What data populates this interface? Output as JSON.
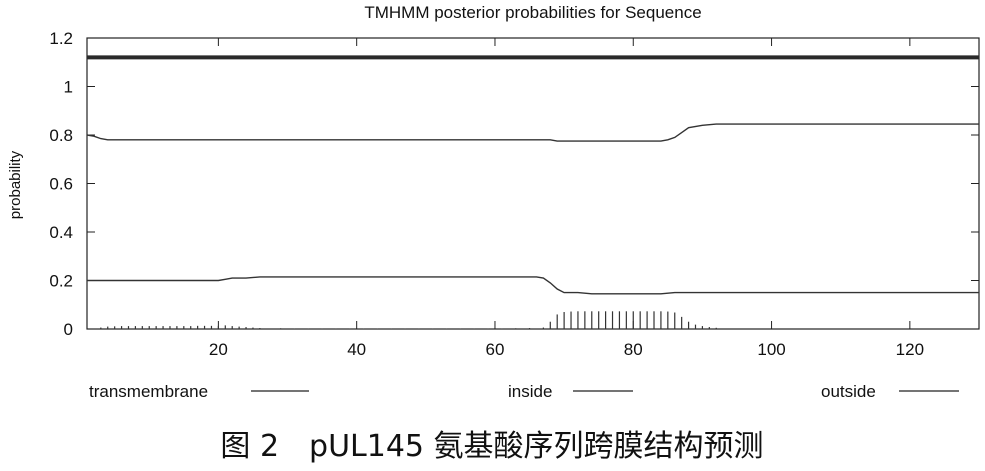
{
  "chart_data": {
    "type": "line",
    "title": "TMHMM posterior probabilities for Sequence",
    "xlabel": "",
    "ylabel": "probability",
    "xlim": [
      1,
      130
    ],
    "ylim": [
      0,
      1.2
    ],
    "x_ticks": [
      20,
      40,
      60,
      80,
      100,
      120
    ],
    "y_ticks": [
      0,
      0.2,
      0.4,
      0.6,
      0.8,
      1,
      1.2
    ],
    "x_tick_labels": [
      "20",
      "40",
      "60",
      "80",
      "100",
      "120"
    ],
    "y_tick_labels": [
      "0",
      "0.2",
      "0.4",
      "0.6",
      "0.8",
      "1",
      "1.2"
    ],
    "grid": false,
    "legend_position": "bottom",
    "series": [
      {
        "name": "outside",
        "style": "thin-line",
        "x": [
          1,
          2,
          3,
          4,
          5,
          20,
          25,
          30,
          50,
          68,
          69,
          70,
          72,
          84,
          85,
          86,
          87,
          88,
          90,
          92,
          130
        ],
        "y": [
          0.8,
          0.795,
          0.785,
          0.78,
          0.78,
          0.78,
          0.78,
          0.78,
          0.78,
          0.78,
          0.775,
          0.775,
          0.775,
          0.775,
          0.78,
          0.79,
          0.81,
          0.83,
          0.84,
          0.845,
          0.845
        ]
      },
      {
        "name": "inside",
        "style": "thin-line",
        "x": [
          1,
          20,
          21,
          22,
          24,
          26,
          28,
          30,
          50,
          66,
          67,
          68,
          69,
          70,
          72,
          74,
          84,
          86,
          88,
          130
        ],
        "y": [
          0.2,
          0.2,
          0.205,
          0.21,
          0.21,
          0.215,
          0.215,
          0.215,
          0.215,
          0.215,
          0.21,
          0.19,
          0.165,
          0.15,
          0.15,
          0.145,
          0.145,
          0.15,
          0.15,
          0.15
        ]
      },
      {
        "name": "transmembrane",
        "style": "impulses",
        "x": [
          3,
          4,
          5,
          6,
          7,
          8,
          9,
          10,
          11,
          12,
          13,
          14,
          15,
          16,
          17,
          18,
          19,
          20,
          21,
          22,
          23,
          24,
          25,
          26,
          29,
          31,
          33,
          35,
          37,
          39,
          41,
          43,
          45,
          47,
          49,
          51,
          53,
          55,
          57,
          59,
          61,
          63,
          65,
          67,
          68,
          69,
          70,
          71,
          72,
          73,
          74,
          75,
          76,
          77,
          78,
          79,
          80,
          81,
          82,
          83,
          84,
          85,
          86,
          87,
          88,
          89,
          90,
          91,
          92
        ],
        "y": [
          0.006,
          0.01,
          0.011,
          0.012,
          0.012,
          0.012,
          0.012,
          0.012,
          0.012,
          0.012,
          0.012,
          0.012,
          0.012,
          0.012,
          0.013,
          0.013,
          0.013,
          0.013,
          0.015,
          0.012,
          0.01,
          0.008,
          0.006,
          0.004,
          0.003,
          0.002,
          0.002,
          0.002,
          0.002,
          0.002,
          0.002,
          0.002,
          0.002,
          0.002,
          0.002,
          0.002,
          0.002,
          0.002,
          0.002,
          0.002,
          0.002,
          0.003,
          0.004,
          0.006,
          0.03,
          0.06,
          0.07,
          0.072,
          0.073,
          0.073,
          0.073,
          0.073,
          0.073,
          0.073,
          0.073,
          0.073,
          0.073,
          0.073,
          0.073,
          0.073,
          0.073,
          0.072,
          0.068,
          0.05,
          0.03,
          0.018,
          0.012,
          0.008,
          0.005
        ]
      }
    ],
    "extra_lines": [
      {
        "y": 1.12,
        "style": "thick-line"
      }
    ],
    "legend": [
      {
        "label": "transmembrane"
      },
      {
        "label": "inside"
      },
      {
        "label": "outside"
      }
    ]
  },
  "caption": "图 2　pUL145 氨基酸序列跨膜结构预测"
}
